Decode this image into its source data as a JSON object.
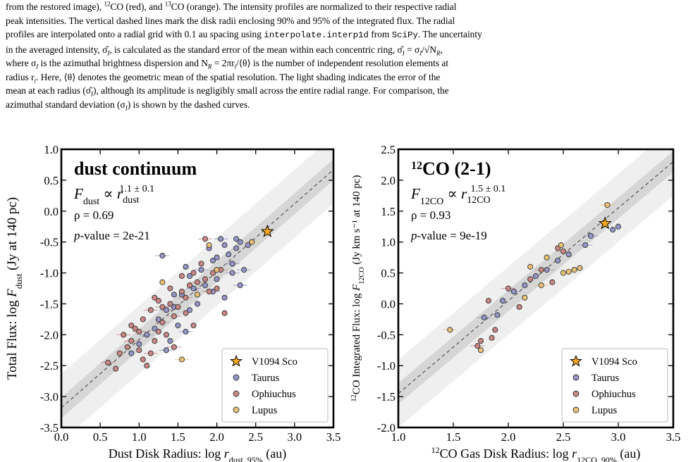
{
  "caption": {
    "lines": [
      [
        {
          "t": "from the restored image), "
        },
        {
          "t": "12",
          "sup": true
        },
        {
          "t": "CO (red), and "
        },
        {
          "t": "13",
          "sup": true
        },
        {
          "t": "CO (orange). The intensity profiles are normalized to their respective radial"
        }
      ],
      [
        {
          "t": "peak intensities. The vertical dashed lines mark the disk radii enclosing 90% and 95% of the integrated flux. The radial"
        }
      ],
      [
        {
          "t": "profiles are interpolated onto a radial grid with 0.1 au spacing using "
        },
        {
          "t": "interpolate.interp1d",
          "mono": true
        },
        {
          "t": " from "
        },
        {
          "t": "SciPy",
          "mono": true
        },
        {
          "t": ". The uncertainty"
        }
      ],
      [
        {
          "t": "in the averaged intensity, σ̂"
        },
        {
          "t": "I",
          "sub": true,
          "i": true
        },
        {
          "t": ", is calculated as the standard error of the mean within each concentric ring, σ̂"
        },
        {
          "t": "I",
          "sub": true,
          "i": true
        },
        {
          "t": " = σ"
        },
        {
          "t": "I",
          "sub": true,
          "i": true
        },
        {
          "t": "/√N"
        },
        {
          "t": "R",
          "sub": true,
          "i": true
        },
        {
          "t": ","
        }
      ],
      [
        {
          "t": "where σ"
        },
        {
          "t": "I",
          "sub": true,
          "i": true
        },
        {
          "t": " is the azimuthal brightness dispersion and N"
        },
        {
          "t": "R",
          "sub": true,
          "i": true
        },
        {
          "t": " = 2πr"
        },
        {
          "t": "i",
          "sub": true,
          "i": true
        },
        {
          "t": "/⟨θ⟩ is the number of independent resolution elements at"
        }
      ],
      [
        {
          "t": "radius r"
        },
        {
          "t": "i",
          "sub": true,
          "i": true
        },
        {
          "t": ". Here, ⟨θ⟩ denotes the geometric mean of the spatial resolution. The light shading indicates the error of the"
        }
      ],
      [
        {
          "t": "mean at each radius (σ̂"
        },
        {
          "t": "I",
          "sub": true,
          "i": true
        },
        {
          "t": "), although its amplitude is negligibly small across the entire radial range. For comparison, the"
        }
      ],
      [
        {
          "t": "azimuthal standard deviation (σ"
        },
        {
          "t": "I",
          "sub": true,
          "i": true
        },
        {
          "t": ") is shown by the dashed curves."
        }
      ]
    ]
  },
  "colors": {
    "taurus": "#9294c4",
    "ophiuchus": "#c88585",
    "lupus": "#e8c077",
    "star": "#f5a623",
    "band_outer": "#efefef",
    "band_inner": "#d6d6d6",
    "fit_line": "#666666"
  },
  "chart_data": [
    {
      "type": "scatter",
      "title": "dust continuum",
      "relation": {
        "lhs": "F",
        "lhs_sub": "dust",
        "rhs": "r",
        "rhs_sub": "dust",
        "exp": "1.1 ± 0.1"
      },
      "rho": "ρ = 0.69",
      "pvalue_label": "p",
      "pvalue_text": "-value = 2e-21",
      "xlabel": {
        "pre": "Dust Disk Radius: log ",
        "var": "r",
        "sub": "dust, 95%",
        "post": " (au)"
      },
      "ylabel": {
        "pre": "Total Flux: log ",
        "var": "F",
        "sub": "dust",
        "post": " (Jy at 140 pc)"
      },
      "xlim": [
        0.0,
        3.5
      ],
      "ylim": [
        -3.5,
        1.0
      ],
      "xticks": [
        "0.0",
        "0.5",
        "1.0",
        "1.5",
        "2.0",
        "2.5",
        "3.0",
        "3.5"
      ],
      "yticks": [
        "-3.5",
        "-3.0",
        "-2.5",
        "-2.0",
        "-1.5",
        "-1.0",
        "-0.5",
        "0.0",
        "0.5",
        "1.0"
      ],
      "fit": {
        "slope": 1.1,
        "intercept": -3.18
      },
      "star_point": {
        "x": 2.65,
        "y": -0.33
      },
      "legend": {
        "placement": "bottom-right",
        "entries": [
          "V1094 Sco",
          "Taurus",
          "Ophiuchus",
          "Lupus"
        ]
      },
      "series": [
        {
          "name": "Taurus",
          "points": [
            [
              1.3,
              -0.72
            ],
            [
              1.6,
              -0.9
            ],
            [
              1.65,
              -1.05
            ],
            [
              1.8,
              -0.95
            ],
            [
              1.9,
              -0.6
            ],
            [
              2.0,
              -0.75
            ],
            [
              2.05,
              -0.45
            ],
            [
              2.1,
              -0.55
            ],
            [
              2.15,
              -0.7
            ],
            [
              2.2,
              -0.85
            ],
            [
              2.25,
              -0.6
            ],
            [
              2.3,
              -0.5
            ],
            [
              2.35,
              -0.95
            ],
            [
              2.4,
              -0.55
            ],
            [
              2.0,
              -1.1
            ],
            [
              1.95,
              -1.3
            ],
            [
              2.1,
              -1.4
            ],
            [
              1.85,
              -1.2
            ],
            [
              1.7,
              -1.25
            ],
            [
              1.55,
              -1.35
            ],
            [
              1.45,
              -1.55
            ],
            [
              1.35,
              -1.6
            ],
            [
              1.25,
              -1.75
            ],
            [
              1.5,
              -1.85
            ],
            [
              1.6,
              -1.95
            ],
            [
              1.4,
              -2.1
            ],
            [
              1.2,
              -1.9
            ],
            [
              1.1,
              -2.0
            ],
            [
              1.0,
              -2.15
            ],
            [
              0.9,
              -2.3
            ],
            [
              2.2,
              -1.0
            ],
            [
              1.75,
              -1.5
            ],
            [
              1.65,
              -1.6
            ],
            [
              2.3,
              -1.2
            ],
            [
              1.95,
              -0.8
            ],
            [
              1.45,
              -1.35
            ],
            [
              1.35,
              -2.25
            ],
            [
              2.25,
              -0.45
            ]
          ]
        },
        {
          "name": "Ophiuchus",
          "points": [
            [
              0.6,
              -2.45
            ],
            [
              0.7,
              -2.55
            ],
            [
              0.75,
              -2.3
            ],
            [
              0.8,
              -2.0
            ],
            [
              0.85,
              -2.2
            ],
            [
              0.9,
              -1.85
            ],
            [
              1.0,
              -1.95
            ],
            [
              1.05,
              -2.4
            ],
            [
              1.1,
              -2.5
            ],
            [
              1.15,
              -2.3
            ],
            [
              1.2,
              -2.1
            ],
            [
              1.25,
              -1.95
            ],
            [
              1.3,
              -1.8
            ],
            [
              1.35,
              -2.0
            ],
            [
              1.4,
              -1.5
            ],
            [
              1.45,
              -1.7
            ],
            [
              1.5,
              -1.55
            ],
            [
              1.55,
              -1.3
            ],
            [
              1.6,
              -1.4
            ],
            [
              1.65,
              -1.2
            ],
            [
              1.7,
              -1.0
            ],
            [
              1.75,
              -1.15
            ],
            [
              1.8,
              -0.85
            ],
            [
              1.85,
              -1.1
            ],
            [
              1.9,
              -1.3
            ],
            [
              1.95,
              -1.0
            ],
            [
              2.0,
              -1.25
            ],
            [
              2.05,
              -0.95
            ],
            [
              2.1,
              -1.65
            ],
            [
              1.25,
              -1.45
            ],
            [
              1.15,
              -1.6
            ],
            [
              1.05,
              -1.75
            ],
            [
              0.95,
              -1.9
            ],
            [
              0.9,
              -2.1
            ],
            [
              1.4,
              -1.25
            ],
            [
              1.55,
              -1.05
            ],
            [
              1.85,
              -0.45
            ],
            [
              1.0,
              -2.25
            ],
            [
              1.2,
              -1.4
            ],
            [
              1.3,
              -1.55
            ],
            [
              1.6,
              -1.65
            ],
            [
              1.7,
              -1.85
            ],
            [
              1.45,
              -2.2
            ]
          ]
        },
        {
          "name": "Lupus",
          "points": [
            [
              1.55,
              -2.4
            ],
            [
              1.75,
              -1.35
            ],
            [
              1.9,
              -0.55
            ],
            [
              2.45,
              -0.5
            ],
            [
              1.3,
              -1.15
            ],
            [
              2.0,
              -0.95
            ]
          ]
        }
      ]
    },
    {
      "type": "scatter",
      "title_sup": "12",
      "title": "CO (2-1)",
      "relation": {
        "lhs": "F",
        "lhs_sub": "12CO",
        "rhs": "r",
        "rhs_sub": "12CO",
        "exp": "1.5 ± 0.1"
      },
      "rho": "ρ = 0.93",
      "pvalue_label": "p",
      "pvalue_text": "-value = 9e-19",
      "xlabel": {
        "sup": "12",
        "pre": "CO Gas Disk Radius: log ",
        "var": "r",
        "sub": "12CO, 90%",
        "post": " (au)"
      },
      "ylabel": {
        "sup": "12",
        "pre": "CO Integrated Flux: log ",
        "var": "F",
        "sub": "12CO",
        "post": " (Jy km s⁻¹ at 140 pc)"
      },
      "xlim": [
        1.0,
        3.5
      ],
      "ylim": [
        -2.0,
        2.5
      ],
      "xticks": [
        "1.0",
        "1.5",
        "2.0",
        "2.5",
        "3.0",
        "3.5"
      ],
      "yticks": [
        "-2.0",
        "-1.5",
        "-1.0",
        "-0.5",
        "0.0",
        "0.5",
        "1.0",
        "1.5",
        "2.0",
        "2.5"
      ],
      "fit": {
        "slope": 1.5,
        "intercept": -2.95
      },
      "star_point": {
        "x": 2.88,
        "y": 1.3
      },
      "legend": {
        "placement": "bottom-right",
        "entries": [
          "V1094 Sco",
          "Taurus",
          "Ophiuchus",
          "Lupus"
        ]
      },
      "series": [
        {
          "name": "Taurus",
          "points": [
            [
              1.78,
              -0.22
            ],
            [
              1.9,
              -0.18
            ],
            [
              1.95,
              0.05
            ],
            [
              2.05,
              0.2
            ],
            [
              2.15,
              0.3
            ],
            [
              2.25,
              0.45
            ],
            [
              2.35,
              0.55
            ],
            [
              2.45,
              0.7
            ],
            [
              2.55,
              0.8
            ],
            [
              2.7,
              0.95
            ],
            [
              2.95,
              1.2
            ],
            [
              3.0,
              1.25
            ],
            [
              2.75,
              1.1
            ]
          ]
        },
        {
          "name": "Ophiuchus",
          "points": [
            [
              1.72,
              -0.68
            ],
            [
              1.88,
              -0.42
            ],
            [
              1.82,
              0.05
            ],
            [
              2.0,
              0.25
            ],
            [
              2.1,
              -0.05
            ],
            [
              2.2,
              0.4
            ],
            [
              2.3,
              0.55
            ],
            [
              2.4,
              0.35
            ],
            [
              2.45,
              0.9
            ],
            [
              2.5,
              0.85
            ],
            [
              1.85,
              -0.55
            ],
            [
              1.75,
              -0.6
            ]
          ]
        },
        {
          "name": "Lupus",
          "points": [
            [
              1.47,
              -0.42
            ],
            [
              1.75,
              -0.75
            ],
            [
              2.15,
              0.1
            ],
            [
              2.3,
              0.3
            ],
            [
              2.5,
              0.5
            ],
            [
              2.55,
              0.52
            ],
            [
              2.6,
              0.55
            ],
            [
              2.2,
              0.6
            ],
            [
              2.35,
              0.75
            ],
            [
              2.9,
              1.6
            ],
            [
              2.65,
              0.58
            ],
            [
              2.48,
              0.95
            ]
          ]
        }
      ]
    }
  ]
}
